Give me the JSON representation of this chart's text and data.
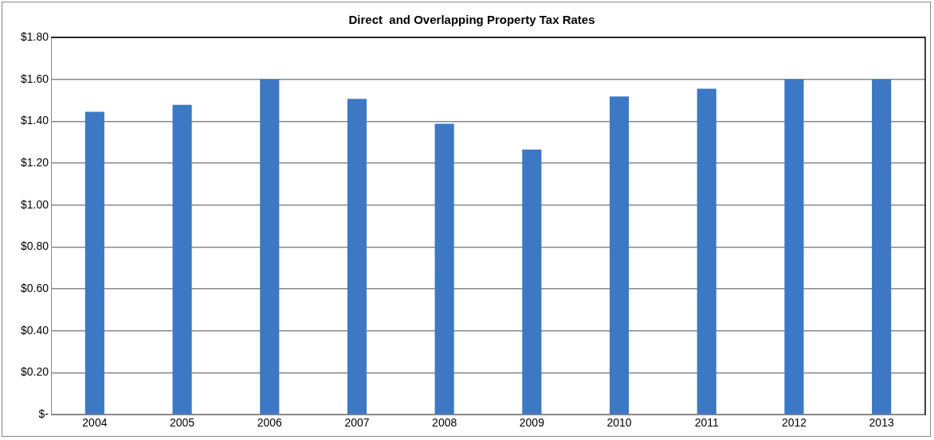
{
  "chart_data": {
    "type": "bar",
    "title": "Direct  and Overlapping Property Tax Rates",
    "categories": [
      "2004",
      "2005",
      "2006",
      "2007",
      "2008",
      "2009",
      "2010",
      "2011",
      "2012",
      "2013"
    ],
    "values": [
      1.445,
      1.478,
      1.6,
      1.507,
      1.388,
      1.265,
      1.518,
      1.555,
      1.6,
      1.6
    ],
    "color": "#3d78c4",
    "ylim": [
      0,
      1.8
    ],
    "yticks": [
      {
        "value": 0,
        "label": "$-"
      },
      {
        "value": 0.2,
        "label": "$0.20"
      },
      {
        "value": 0.4,
        "label": "$0.40"
      },
      {
        "value": 0.6,
        "label": "$0.60"
      },
      {
        "value": 0.8,
        "label": "$0.80"
      },
      {
        "value": 1,
        "label": "$1.00"
      },
      {
        "value": 1.2,
        "label": "$1.20"
      },
      {
        "value": 1.4,
        "label": "$1.40"
      },
      {
        "value": 1.6,
        "label": "$1.60"
      },
      {
        "value": 1.8,
        "label": "$1.80"
      }
    ],
    "grid": "y",
    "legend": false
  }
}
